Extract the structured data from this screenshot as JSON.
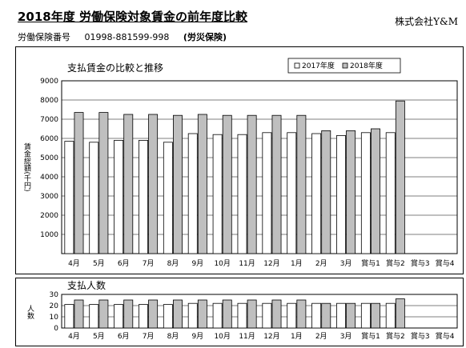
{
  "header": {
    "title": "2018年度 労働保険対象賃金の前年度比較",
    "company": "株式会社Y&M",
    "insurance_number_label": "労働保険番号",
    "insurance_number": "01998-881599-998",
    "category": "(労災保険)"
  },
  "colors": {
    "series_2017": "#ffffff",
    "series_2018": "#bfbfbf",
    "bar_stroke": "#000000"
  },
  "chart_data": [
    {
      "type": "bar",
      "title": "支払賃金の比較と推移",
      "ylabel": "賃金総額(千円)",
      "xlabel": "",
      "ylim": [
        0,
        9000
      ],
      "yticks": [
        1000,
        2000,
        3000,
        4000,
        5000,
        6000,
        7000,
        8000,
        9000
      ],
      "grid": true,
      "legend": "top-right",
      "categories": [
        "4月",
        "5月",
        "6月",
        "7月",
        "8月",
        "9月",
        "10月",
        "11月",
        "12月",
        "1月",
        "2月",
        "3月",
        "賞与1",
        "賞与2",
        "賞与3",
        "賞与4"
      ],
      "series": [
        {
          "name": "2017年度",
          "values": [
            5850,
            5800,
            5900,
            5900,
            5800,
            6250,
            6200,
            6200,
            6300,
            6300,
            6250,
            6150,
            6300,
            6300,
            null,
            null
          ]
        },
        {
          "name": "2018年度",
          "values": [
            7350,
            7350,
            7250,
            7250,
            7200,
            7250,
            7200,
            7200,
            7200,
            7200,
            6400,
            6400,
            6500,
            7950,
            null,
            null
          ]
        }
      ]
    },
    {
      "type": "bar",
      "title": "支払人数",
      "ylabel": "人数",
      "xlabel": "",
      "ylim": [
        0,
        30
      ],
      "yticks": [
        0,
        10,
        20,
        30
      ],
      "grid": true,
      "categories": [
        "4月",
        "5月",
        "6月",
        "7月",
        "8月",
        "9月",
        "10月",
        "11月",
        "12月",
        "1月",
        "2月",
        "3月",
        "賞与1",
        "賞与2",
        "賞与3",
        "賞与4"
      ],
      "series": [
        {
          "name": "2017年度",
          "values": [
            21,
            21,
            21,
            21,
            21,
            22,
            22,
            22,
            22,
            22,
            22,
            22,
            22,
            22,
            null,
            null
          ]
        },
        {
          "name": "2018年度",
          "values": [
            25,
            25,
            25,
            25,
            25,
            25,
            25,
            25,
            25,
            25,
            22,
            22,
            22,
            26,
            null,
            null
          ]
        }
      ]
    }
  ]
}
